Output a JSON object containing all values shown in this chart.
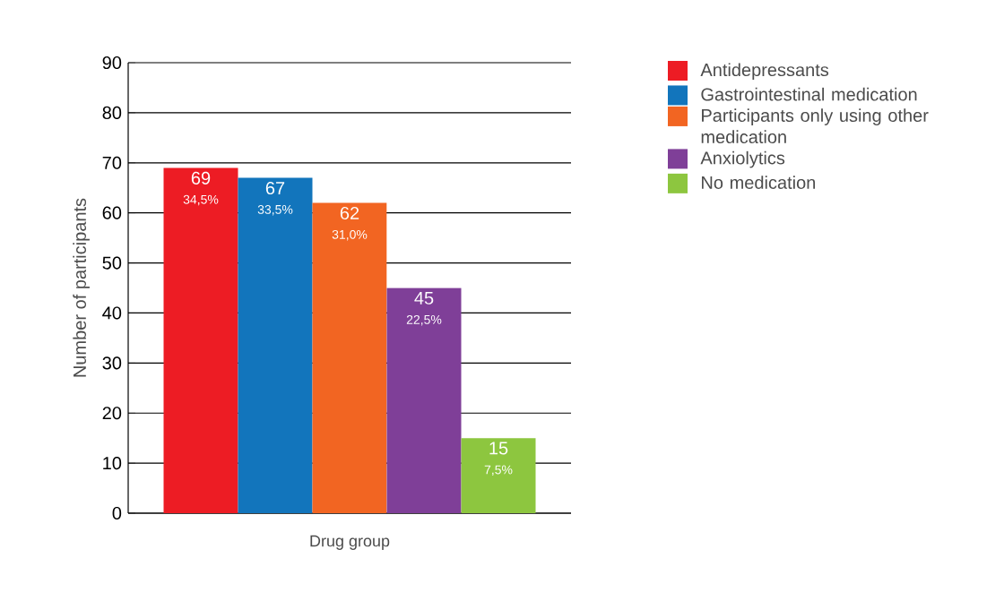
{
  "chart_data": {
    "type": "bar",
    "categories": [
      null
    ],
    "xlabel": "Drug group",
    "ylabel": "Number of participants",
    "series": [
      {
        "name": "Antidepressants",
        "color": "#ed1c24",
        "values": [
          69
        ]
      },
      {
        "name": "Gastrointestinal medication",
        "color": "#1275bc",
        "values": [
          67
        ]
      },
      {
        "name": "Participants only using other medication",
        "color": "#f26522",
        "values": [
          62
        ]
      },
      {
        "name": "Anxiolytics",
        "color": "#7f3f98",
        "values": [
          45
        ]
      },
      {
        "name": "No medication",
        "color": "#8dc63f",
        "values": [
          15
        ]
      }
    ],
    "annotations": [
      {
        "text": "34,5%",
        "y": 69
      },
      {
        "text": "33,5%",
        "y": 67
      },
      {
        "text": "31,0%",
        "y": 62
      },
      {
        "text": "22,5%",
        "y": 45
      },
      {
        "text": "7,5%",
        "y": 15
      }
    ],
    "ylim": [
      0,
      90
    ],
    "yticks": [
      0,
      10,
      20,
      30,
      40,
      50,
      60,
      70,
      80,
      90
    ],
    "grid": "y",
    "legend": "top right",
    "data_labels": true
  }
}
